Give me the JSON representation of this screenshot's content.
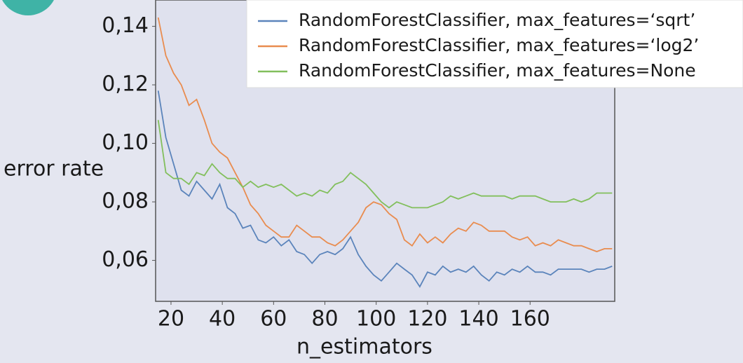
{
  "chart_data": {
    "type": "line",
    "x_label": "n_estimators",
    "y_label": "error rate",
    "x": [
      15,
      18,
      21,
      24,
      27,
      30,
      33,
      36,
      39,
      42,
      45,
      48,
      51,
      54,
      57,
      60,
      63,
      66,
      69,
      72,
      75,
      78,
      81,
      84,
      87,
      90,
      93,
      96,
      99,
      102,
      105,
      108,
      111,
      114,
      117,
      120,
      123,
      126,
      129,
      132,
      135,
      138,
      141,
      144,
      147,
      150,
      153,
      156,
      159,
      162,
      165,
      168,
      171,
      174,
      177,
      180,
      183,
      186,
      189,
      192
    ],
    "series": [
      {
        "name": "RandomForestClassifier, max_features=‘sqrt’",
        "color": "#5b84bb",
        "values": [
          0.118,
          0.102,
          0.093,
          0.084,
          0.082,
          0.087,
          0.084,
          0.081,
          0.086,
          0.078,
          0.076,
          0.071,
          0.072,
          0.067,
          0.066,
          0.068,
          0.065,
          0.067,
          0.063,
          0.062,
          0.059,
          0.062,
          0.063,
          0.062,
          0.064,
          0.068,
          0.062,
          0.058,
          0.055,
          0.053,
          0.056,
          0.059,
          0.057,
          0.055,
          0.051,
          0.056,
          0.055,
          0.058,
          0.056,
          0.057,
          0.056,
          0.058,
          0.055,
          0.053,
          0.056,
          0.055,
          0.057,
          0.056,
          0.058,
          0.056,
          0.056,
          0.055,
          0.057,
          0.057,
          0.057,
          0.057,
          0.056,
          0.057,
          0.057,
          0.058
        ]
      },
      {
        "name": "RandomForestClassifier, max_features=‘log2’",
        "color": "#e98c4f",
        "values": [
          0.143,
          0.13,
          0.124,
          0.12,
          0.113,
          0.115,
          0.108,
          0.1,
          0.097,
          0.095,
          0.09,
          0.085,
          0.079,
          0.076,
          0.072,
          0.07,
          0.068,
          0.068,
          0.072,
          0.07,
          0.068,
          0.068,
          0.066,
          0.065,
          0.067,
          0.07,
          0.073,
          0.078,
          0.08,
          0.079,
          0.076,
          0.074,
          0.067,
          0.065,
          0.069,
          0.066,
          0.068,
          0.066,
          0.069,
          0.071,
          0.07,
          0.073,
          0.072,
          0.07,
          0.07,
          0.07,
          0.068,
          0.067,
          0.068,
          0.065,
          0.066,
          0.065,
          0.067,
          0.066,
          0.065,
          0.065,
          0.064,
          0.063,
          0.064,
          0.064
        ]
      },
      {
        "name": "RandomForestClassifier, max_features=None",
        "color": "#82bf5c",
        "values": [
          0.108,
          0.09,
          0.088,
          0.088,
          0.086,
          0.09,
          0.089,
          0.093,
          0.09,
          0.088,
          0.088,
          0.085,
          0.087,
          0.085,
          0.086,
          0.085,
          0.086,
          0.084,
          0.082,
          0.083,
          0.082,
          0.084,
          0.083,
          0.086,
          0.087,
          0.09,
          0.088,
          0.086,
          0.083,
          0.08,
          0.078,
          0.08,
          0.079,
          0.078,
          0.078,
          0.078,
          0.079,
          0.08,
          0.082,
          0.081,
          0.082,
          0.083,
          0.082,
          0.082,
          0.082,
          0.082,
          0.081,
          0.082,
          0.082,
          0.082,
          0.081,
          0.08,
          0.08,
          0.08,
          0.081,
          0.08,
          0.081,
          0.083,
          0.083,
          0.083
        ]
      }
    ],
    "xlim": [
      14,
      193
    ],
    "xticks": [
      20,
      40,
      60,
      80,
      100,
      120,
      140,
      160
    ],
    "ylim": [
      0.046,
      0.149
    ],
    "yticks": [
      {
        "value": 0.06,
        "label": "0,06"
      },
      {
        "value": 0.08,
        "label": "0,08"
      },
      {
        "value": 0.1,
        "label": "0,10"
      },
      {
        "value": 0.12,
        "label": "0,12"
      },
      {
        "value": 0.14,
        "label": "0,14"
      }
    ],
    "legend": "upper right",
    "grid": false
  }
}
